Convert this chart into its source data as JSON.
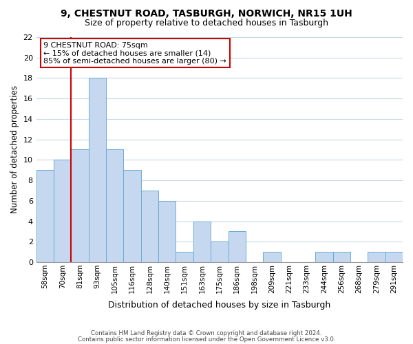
{
  "title": "9, CHESTNUT ROAD, TASBURGH, NORWICH, NR15 1UH",
  "subtitle": "Size of property relative to detached houses in Tasburgh",
  "xlabel": "Distribution of detached houses by size in Tasburgh",
  "ylabel": "Number of detached properties",
  "bar_labels": [
    "58sqm",
    "70sqm",
    "81sqm",
    "93sqm",
    "105sqm",
    "116sqm",
    "128sqm",
    "140sqm",
    "151sqm",
    "163sqm",
    "175sqm",
    "186sqm",
    "198sqm",
    "209sqm",
    "221sqm",
    "233sqm",
    "244sqm",
    "256sqm",
    "268sqm",
    "279sqm",
    "291sqm"
  ],
  "bar_values": [
    9,
    10,
    11,
    18,
    11,
    9,
    7,
    6,
    1,
    4,
    2,
    3,
    0,
    1,
    0,
    0,
    1,
    1,
    0,
    1,
    1
  ],
  "bar_color": "#c5d8f0",
  "bar_edge_color": "#6aaad4",
  "ylim": [
    0,
    22
  ],
  "yticks": [
    0,
    2,
    4,
    6,
    8,
    10,
    12,
    14,
    16,
    18,
    20,
    22
  ],
  "property_line_color": "#cc0000",
  "property_line_x": 1.5,
  "annotation_text_line1": "9 CHESTNUT ROAD: 75sqm",
  "annotation_text_line2": "← 15% of detached houses are smaller (14)",
  "annotation_text_line3": "85% of semi-detached houses are larger (80) →",
  "annotation_box_edgecolor": "#cc0000",
  "footer_line1": "Contains HM Land Registry data © Crown copyright and database right 2024.",
  "footer_line2": "Contains public sector information licensed under the Open Government Licence v3.0.",
  "background_color": "#ffffff",
  "grid_color": "#c8d8e8"
}
